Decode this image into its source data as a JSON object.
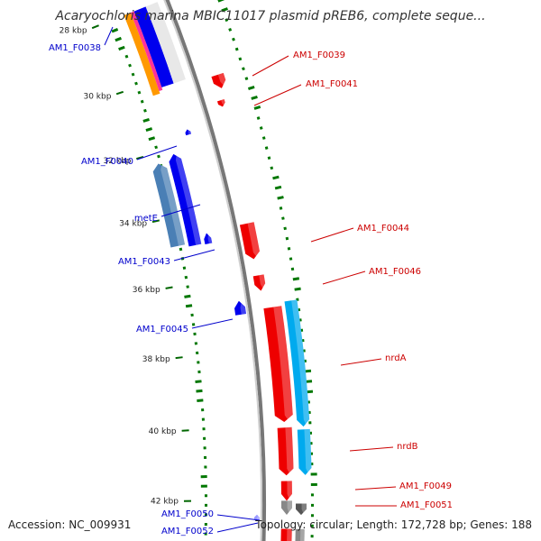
{
  "title": "Acaryochloris marina MBIC11017 plasmid pREB6, complete seque...",
  "accession": "Accession: NC_009931",
  "summary": "Topology: circular; Length: 172,728 bp; Genes: 188",
  "colors": {
    "forward_gene": "#ee0000",
    "reverse_gene": "#0000ee",
    "forward_label": "#cc0000",
    "reverse_label": "#0000cc",
    "cds_cyan": "#00aaee",
    "cds_steelblue": "#4a7fb5",
    "orange_track": "#ff9900",
    "pink_track": "#ff3399",
    "backbone": "#888888",
    "gc_dots": "#007700"
  },
  "ticks": [
    {
      "label": "28 kbp"
    },
    {
      "label": "30 kbp"
    },
    {
      "label": "32 kbp"
    },
    {
      "label": "34 kbp"
    },
    {
      "label": "36 kbp"
    },
    {
      "label": "38 kbp"
    },
    {
      "label": "40 kbp"
    },
    {
      "label": "42 kbp"
    }
  ],
  "labels": [
    {
      "text": "AM1_F0038",
      "strand": "reverse"
    },
    {
      "text": "AM1_F0039",
      "strand": "forward"
    },
    {
      "text": "AM1_F0041",
      "strand": "forward"
    },
    {
      "text": "AM1_F0040",
      "strand": "reverse"
    },
    {
      "text": "metE",
      "strand": "reverse"
    },
    {
      "text": "AM1_F0044",
      "strand": "forward"
    },
    {
      "text": "AM1_F0043",
      "strand": "reverse"
    },
    {
      "text": "AM1_F0046",
      "strand": "forward"
    },
    {
      "text": "AM1_F0045",
      "strand": "reverse"
    },
    {
      "text": "nrdA",
      "strand": "forward"
    },
    {
      "text": "nrdB",
      "strand": "forward"
    },
    {
      "text": "AM1_F0049",
      "strand": "forward"
    },
    {
      "text": "AM1_F0051",
      "strand": "forward"
    },
    {
      "text": "AM1_F0050",
      "strand": "reverse"
    },
    {
      "text": "AM1_F0052",
      "strand": "reverse"
    }
  ]
}
